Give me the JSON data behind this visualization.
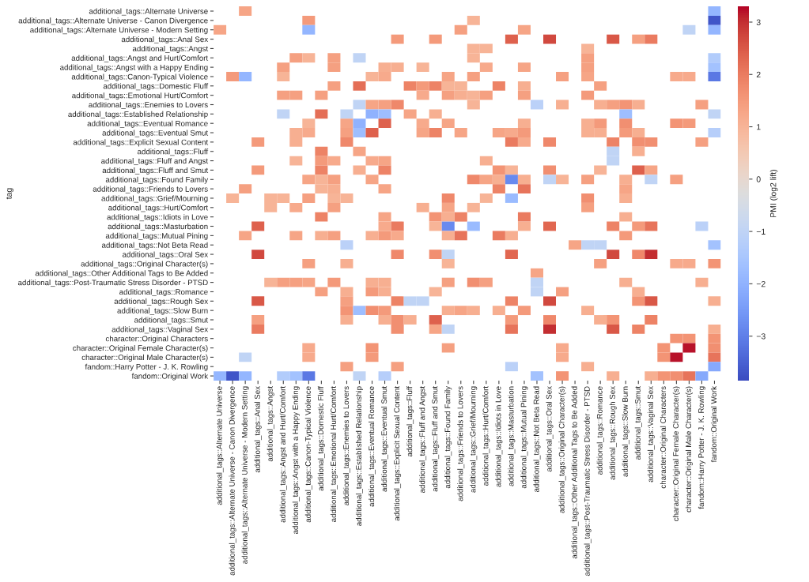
{
  "chart_data": {
    "type": "heatmap",
    "ylabel": "tag",
    "clabel": "PMI (log2 lift)",
    "categories": [
      "additional_tags::Alternate Universe",
      "additional_tags::Alternate Universe - Canon Divergence",
      "additional_tags::Alternate Universe - Modern Setting",
      "additional_tags::Anal Sex",
      "additional_tags::Angst",
      "additional_tags::Angst and Hurt/Comfort",
      "additional_tags::Angst with a Happy Ending",
      "additional_tags::Canon-Typical Violence",
      "additional_tags::Domestic Fluff",
      "additional_tags::Emotional Hurt/Comfort",
      "additional_tags::Enemies to Lovers",
      "additional_tags::Established Relationship",
      "additional_tags::Eventual Romance",
      "additional_tags::Eventual Smut",
      "additional_tags::Explicit Sexual Content",
      "additional_tags::Fluff",
      "additional_tags::Fluff and Angst",
      "additional_tags::Fluff and Smut",
      "additional_tags::Found Family",
      "additional_tags::Friends to Lovers",
      "additional_tags::Grief/Mourning",
      "additional_tags::Hurt/Comfort",
      "additional_tags::Idiots in Love",
      "additional_tags::Masturbation",
      "additional_tags::Mutual Pining",
      "additional_tags::Not Beta Read",
      "additional_tags::Oral Sex",
      "additional_tags::Original Character(s)",
      "additional_tags::Other Additional Tags to Be Added",
      "additional_tags::Post-Traumatic Stress Disorder - PTSD",
      "additional_tags::Romance",
      "additional_tags::Rough Sex",
      "additional_tags::Slow Burn",
      "additional_tags::Smut",
      "additional_tags::Vaginal Sex",
      "character::Original Characters",
      "character::Original Female Character(s)",
      "character::Original Male Character(s)",
      "fandom::Harry Potter - J. K. Rowling",
      "fandom::Original Work"
    ],
    "y_categories": [
      "additional_tags::Alternate Universe",
      "additional_tags::Alternate Universe - Canon Divergence",
      "additional_tags::Alternate Universe - Modern Setting",
      "additional_tags::Anal Sex",
      "additional_tags::Angst",
      "additional_tags::Angst and Hurt/Comfort",
      "additional_tags::Angst with a Happy Ending",
      "additional_tags::Canon-Typical Violence",
      "additional_tags::Domestic Fluff",
      "additional_tags::Emotional Hurt/Comfort",
      "additional_tags::Enemies to Lovers",
      "additional_tags::Established Relationship",
      "additional_tags::Eventual Romance",
      "additional_tags::Eventual Smut",
      "additional_tags::Explicit Sexual Content",
      "additional_tags::Fluff",
      "additional_tags::Fluff and Angst",
      "additional_tags::Fluff and Smut",
      "additional_tags::Found Family",
      "additional_tags::Friends to Lovers",
      "additional_tags::Grief/Mourning",
      "additional_tags::Hurt/Comfort",
      "additional_tags::Idiots in Love",
      "additional_tags::Masturbation",
      "additional_tags::Mutual Pining",
      "additional_tags::Not Beta Read",
      "additional_tags::Oral Sex",
      "additional_tags::Original Character(s)",
      "additional_tags::Other Additional Tags to Be Added",
      "additional_tags::Post-Traumatic Stress Disorder - PTSD",
      "additional_tags::Romance",
      "additional_tags::Rough Sex",
      "additional_tags::Slow Burn",
      "additional_tags::Smut",
      "additional_tags::Vaginal Sex",
      "character::Original Characters",
      "character::Original Female Character(s)",
      "character::Original Male Character(s)",
      "fandom::Harry Potter - J. K. Rowling",
      "fandom::Original Work"
    ],
    "cells": [
      [
        null,
        null,
        1.3,
        null,
        null,
        null,
        null,
        null,
        null,
        null,
        null,
        null,
        null,
        null,
        null,
        null,
        null,
        null,
        null,
        null,
        null,
        null,
        null,
        null,
        null,
        null,
        null,
        null,
        null,
        null,
        null,
        null,
        null,
        null,
        null,
        null,
        null,
        null,
        null,
        -1.9
      ],
      [
        null,
        null,
        null,
        null,
        null,
        null,
        null,
        1.5,
        null,
        null,
        null,
        null,
        null,
        null,
        null,
        null,
        null,
        null,
        null,
        null,
        1.0,
        null,
        null,
        null,
        null,
        null,
        null,
        null,
        null,
        null,
        null,
        null,
        null,
        null,
        null,
        null,
        null,
        null,
        null,
        -3.7
      ],
      [
        1.3,
        null,
        null,
        null,
        null,
        null,
        null,
        -1.9,
        null,
        null,
        null,
        null,
        null,
        null,
        null,
        null,
        null,
        null,
        null,
        1.4,
        null,
        null,
        null,
        null,
        1.3,
        null,
        null,
        null,
        null,
        null,
        null,
        null,
        null,
        null,
        null,
        null,
        null,
        -1.0,
        null,
        -1.9
      ],
      [
        null,
        null,
        null,
        null,
        null,
        null,
        null,
        null,
        null,
        null,
        null,
        null,
        null,
        null,
        1.5,
        null,
        null,
        1.5,
        null,
        null,
        null,
        null,
        null,
        2.4,
        null,
        null,
        2.7,
        null,
        null,
        null,
        null,
        2.5,
        null,
        1.4,
        2.0,
        null,
        null,
        null,
        null,
        null
      ],
      [
        null,
        null,
        null,
        null,
        null,
        null,
        null,
        null,
        null,
        null,
        null,
        null,
        null,
        null,
        null,
        null,
        null,
        null,
        null,
        null,
        1.0,
        1.0,
        null,
        null,
        null,
        null,
        null,
        null,
        null,
        1.0,
        null,
        null,
        null,
        null,
        null,
        null,
        null,
        null,
        null,
        null
      ],
      [
        null,
        null,
        null,
        null,
        null,
        null,
        1.4,
        1.0,
        null,
        1.4,
        null,
        -1.0,
        null,
        null,
        null,
        null,
        null,
        null,
        null,
        null,
        1.0,
        null,
        null,
        null,
        null,
        null,
        null,
        null,
        null,
        1.4,
        null,
        null,
        null,
        null,
        null,
        null,
        null,
        null,
        null,
        -1.3
      ],
      [
        null,
        null,
        null,
        null,
        null,
        1.4,
        null,
        null,
        null,
        1.4,
        null,
        null,
        null,
        1.1,
        1.1,
        null,
        1.0,
        null,
        null,
        null,
        null,
        1.2,
        null,
        null,
        1.3,
        null,
        null,
        null,
        null,
        1.4,
        null,
        null,
        null,
        null,
        null,
        null,
        null,
        null,
        null,
        -1.6
      ],
      [
        null,
        1.5,
        -1.9,
        null,
        null,
        1.0,
        null,
        null,
        null,
        null,
        null,
        null,
        1.0,
        1.2,
        null,
        null,
        null,
        null,
        1.3,
        null,
        1.4,
        null,
        null,
        null,
        null,
        null,
        null,
        1.4,
        null,
        1.3,
        null,
        null,
        null,
        null,
        null,
        null,
        1.2,
        1.2,
        null,
        -3.1
      ],
      [
        null,
        null,
        null,
        null,
        null,
        null,
        null,
        null,
        null,
        1.4,
        null,
        2.2,
        null,
        null,
        null,
        1.9,
        1.5,
        1.9,
        1.0,
        1.0,
        null,
        null,
        1.9,
        null,
        1.1,
        null,
        null,
        null,
        null,
        null,
        1.4,
        null,
        null,
        null,
        null,
        null,
        null,
        null,
        null,
        null
      ],
      [
        null,
        null,
        null,
        null,
        null,
        1.4,
        1.4,
        null,
        1.4,
        null,
        null,
        null,
        null,
        null,
        null,
        null,
        1.2,
        null,
        1.4,
        1.1,
        1.0,
        1.4,
        null,
        null,
        1.4,
        null,
        null,
        null,
        null,
        1.5,
        null,
        null,
        null,
        null,
        null,
        null,
        null,
        null,
        null,
        null
      ],
      [
        null,
        null,
        null,
        null,
        null,
        null,
        null,
        null,
        null,
        null,
        null,
        -1.0,
        1.3,
        1.4,
        1.8,
        null,
        null,
        null,
        null,
        null,
        1.0,
        null,
        null,
        null,
        null,
        -1.1,
        null,
        1.1,
        null,
        null,
        1.1,
        1.4,
        1.6,
        1.1,
        null,
        null,
        null,
        null,
        1.4,
        null
      ],
      [
        null,
        null,
        null,
        null,
        null,
        -1.0,
        null,
        null,
        2.2,
        null,
        -1.0,
        null,
        -2.0,
        -1.7,
        null,
        1.3,
        null,
        1.1,
        null,
        null,
        null,
        null,
        null,
        null,
        null,
        null,
        null,
        null,
        null,
        null,
        null,
        null,
        -1.7,
        null,
        null,
        null,
        null,
        null,
        null,
        -1.0
      ],
      [
        null,
        null,
        null,
        null,
        null,
        null,
        null,
        1.0,
        null,
        null,
        1.3,
        -2.0,
        null,
        2.4,
        null,
        null,
        1.2,
        null,
        1.3,
        null,
        null,
        null,
        null,
        null,
        1.1,
        null,
        null,
        null,
        null,
        1.1,
        1.5,
        null,
        1.7,
        null,
        null,
        null,
        1.6,
        1.5,
        null,
        null
      ],
      [
        null,
        null,
        null,
        null,
        null,
        null,
        1.1,
        1.2,
        null,
        null,
        1.4,
        -1.7,
        2.4,
        null,
        null,
        null,
        1.3,
        1.9,
        null,
        1.3,
        null,
        null,
        1.3,
        1.2,
        1.5,
        null,
        null,
        null,
        null,
        1.1,
        1.1,
        null,
        1.5,
        1.1,
        null,
        null,
        null,
        null,
        null,
        -1.2
      ],
      [
        null,
        null,
        null,
        1.5,
        null,
        null,
        1.1,
        null,
        null,
        null,
        1.8,
        null,
        null,
        null,
        null,
        null,
        null,
        null,
        null,
        null,
        null,
        null,
        null,
        2.0,
        1.2,
        null,
        1.8,
        null,
        null,
        null,
        null,
        1.9,
        null,
        1.7,
        1.7,
        null,
        null,
        null,
        1.4,
        null
      ],
      [
        null,
        null,
        null,
        null,
        null,
        null,
        null,
        null,
        1.9,
        null,
        null,
        1.3,
        null,
        null,
        null,
        null,
        null,
        null,
        null,
        null,
        null,
        null,
        null,
        null,
        null,
        null,
        null,
        null,
        null,
        null,
        null,
        -1.0,
        null,
        1.1,
        null,
        null,
        null,
        null,
        null,
        null
      ],
      [
        null,
        null,
        null,
        null,
        null,
        null,
        1.0,
        null,
        1.5,
        1.2,
        null,
        null,
        1.2,
        1.3,
        null,
        null,
        null,
        null,
        null,
        null,
        null,
        1.1,
        null,
        null,
        null,
        null,
        null,
        null,
        null,
        null,
        null,
        -1.0,
        null,
        null,
        null,
        null,
        null,
        null,
        null,
        null
      ],
      [
        null,
        null,
        null,
        1.5,
        null,
        null,
        null,
        null,
        1.9,
        null,
        null,
        1.1,
        null,
        1.9,
        null,
        null,
        null,
        null,
        null,
        null,
        null,
        null,
        1.6,
        1.0,
        null,
        null,
        1.7,
        null,
        null,
        null,
        1.0,
        null,
        null,
        2.4,
        1.3,
        null,
        null,
        null,
        null,
        null
      ],
      [
        null,
        null,
        null,
        null,
        null,
        null,
        null,
        1.3,
        1.0,
        1.4,
        null,
        null,
        1.3,
        null,
        null,
        null,
        null,
        null,
        null,
        null,
        1.8,
        1.3,
        1.1,
        -2.8,
        1.1,
        null,
        -1.0,
        1.0,
        null,
        1.4,
        null,
        null,
        1.1,
        null,
        -1.0,
        null,
        1.4,
        null,
        null,
        null
      ],
      [
        null,
        null,
        1.4,
        null,
        null,
        null,
        null,
        null,
        1.0,
        1.1,
        null,
        null,
        null,
        1.3,
        null,
        null,
        null,
        null,
        null,
        null,
        null,
        null,
        1.9,
        null,
        2.1,
        null,
        null,
        null,
        null,
        null,
        null,
        null,
        1.3,
        null,
        null,
        null,
        null,
        null,
        null,
        null
      ],
      [
        null,
        1.0,
        null,
        null,
        1.0,
        1.0,
        null,
        1.4,
        null,
        1.0,
        1.0,
        null,
        null,
        null,
        null,
        null,
        null,
        null,
        1.8,
        null,
        null,
        1.0,
        null,
        -1.8,
        null,
        null,
        null,
        null,
        null,
        1.7,
        null,
        null,
        1.1,
        null,
        null,
        null,
        null,
        null,
        null,
        null
      ],
      [
        null,
        null,
        null,
        null,
        1.0,
        null,
        1.2,
        null,
        null,
        1.4,
        null,
        null,
        null,
        null,
        null,
        null,
        1.1,
        null,
        1.3,
        null,
        1.0,
        null,
        null,
        null,
        null,
        null,
        null,
        null,
        null,
        1.4,
        null,
        null,
        null,
        null,
        null,
        null,
        null,
        null,
        null,
        null
      ],
      [
        null,
        null,
        null,
        null,
        null,
        null,
        null,
        null,
        1.9,
        null,
        null,
        null,
        null,
        1.3,
        null,
        null,
        null,
        1.6,
        1.1,
        1.9,
        null,
        null,
        null,
        null,
        2.0,
        null,
        null,
        null,
        null,
        null,
        null,
        null,
        1.1,
        null,
        null,
        null,
        null,
        null,
        null,
        null
      ],
      [
        null,
        null,
        null,
        2.4,
        null,
        null,
        null,
        null,
        null,
        null,
        null,
        null,
        null,
        1.2,
        2.0,
        null,
        null,
        1.0,
        -2.8,
        null,
        -1.8,
        null,
        null,
        null,
        1.1,
        null,
        2.3,
        null,
        null,
        null,
        null,
        1.9,
        null,
        1.5,
        2.1,
        null,
        null,
        null,
        -1.1,
        null
      ],
      [
        null,
        null,
        1.3,
        null,
        null,
        null,
        1.3,
        null,
        1.1,
        1.4,
        null,
        null,
        1.1,
        1.5,
        1.2,
        null,
        null,
        null,
        1.1,
        2.1,
        null,
        null,
        2.0,
        1.1,
        null,
        null,
        null,
        null,
        null,
        null,
        null,
        null,
        1.5,
        null,
        null,
        null,
        null,
        null,
        null,
        null
      ],
      [
        null,
        null,
        null,
        null,
        null,
        null,
        null,
        null,
        null,
        null,
        -1.1,
        null,
        null,
        null,
        null,
        null,
        null,
        null,
        null,
        null,
        null,
        null,
        null,
        null,
        null,
        null,
        null,
        null,
        1.3,
        -1.0,
        -1.0,
        null,
        null,
        null,
        null,
        null,
        null,
        null,
        null,
        -1.6
      ],
      [
        null,
        null,
        null,
        2.7,
        null,
        null,
        null,
        null,
        null,
        null,
        null,
        null,
        null,
        null,
        1.8,
        null,
        null,
        1.7,
        -1.0,
        null,
        null,
        null,
        null,
        2.3,
        null,
        null,
        null,
        null,
        null,
        null,
        null,
        2.7,
        null,
        1.8,
        3.0,
        null,
        null,
        null,
        null,
        null
      ],
      [
        null,
        null,
        null,
        null,
        null,
        null,
        null,
        1.4,
        null,
        null,
        1.1,
        null,
        null,
        null,
        null,
        null,
        null,
        null,
        1.0,
        null,
        null,
        null,
        null,
        null,
        null,
        null,
        null,
        null,
        null,
        null,
        1.4,
        null,
        null,
        null,
        null,
        null,
        1.2,
        1.2,
        null,
        1.6
      ],
      [
        null,
        null,
        null,
        null,
        null,
        null,
        null,
        null,
        null,
        null,
        null,
        null,
        null,
        null,
        null,
        null,
        null,
        null,
        null,
        null,
        null,
        null,
        null,
        null,
        null,
        1.3,
        null,
        null,
        null,
        null,
        null,
        null,
        null,
        null,
        null,
        null,
        null,
        null,
        null,
        null
      ],
      [
        null,
        null,
        null,
        null,
        1.0,
        1.4,
        1.4,
        1.3,
        null,
        1.5,
        null,
        null,
        1.1,
        1.1,
        null,
        null,
        null,
        null,
        1.4,
        null,
        1.7,
        1.4,
        null,
        null,
        null,
        -1.0,
        null,
        null,
        null,
        null,
        null,
        null,
        1.1,
        null,
        null,
        null,
        null,
        null,
        1.1,
        null
      ],
      [
        null,
        null,
        null,
        null,
        null,
        null,
        null,
        null,
        1.4,
        null,
        1.1,
        null,
        1.5,
        1.1,
        null,
        null,
        null,
        1.0,
        null,
        null,
        null,
        null,
        null,
        null,
        null,
        -1.0,
        null,
        1.4,
        null,
        null,
        null,
        null,
        null,
        1.1,
        null,
        null,
        null,
        null,
        null,
        null
      ],
      [
        null,
        null,
        null,
        2.5,
        null,
        null,
        null,
        null,
        null,
        null,
        1.4,
        null,
        null,
        null,
        1.9,
        -1.0,
        -1.0,
        null,
        null,
        null,
        null,
        null,
        null,
        1.9,
        null,
        null,
        2.7,
        null,
        null,
        null,
        null,
        null,
        null,
        1.6,
        2.5,
        null,
        null,
        null,
        null,
        1.1
      ],
      [
        null,
        null,
        null,
        null,
        null,
        null,
        null,
        null,
        null,
        null,
        1.6,
        -1.7,
        1.7,
        1.5,
        null,
        null,
        null,
        null,
        1.1,
        1.3,
        1.1,
        null,
        1.1,
        null,
        1.5,
        null,
        null,
        null,
        null,
        1.1,
        null,
        null,
        null,
        null,
        null,
        null,
        null,
        null,
        null,
        null
      ],
      [
        null,
        null,
        null,
        1.4,
        null,
        null,
        null,
        null,
        null,
        null,
        1.1,
        null,
        null,
        1.1,
        1.7,
        1.1,
        null,
        2.4,
        null,
        null,
        null,
        null,
        null,
        1.5,
        null,
        null,
        1.8,
        null,
        null,
        null,
        1.1,
        1.6,
        null,
        null,
        1.9,
        null,
        null,
        null,
        null,
        null
      ],
      [
        null,
        null,
        null,
        2.0,
        null,
        null,
        null,
        null,
        null,
        null,
        null,
        null,
        null,
        null,
        1.7,
        null,
        null,
        1.3,
        -1.0,
        null,
        null,
        null,
        null,
        2.1,
        null,
        null,
        3.0,
        null,
        null,
        null,
        null,
        2.5,
        null,
        1.9,
        null,
        null,
        null,
        null,
        null,
        1.1
      ],
      [
        null,
        null,
        null,
        null,
        null,
        null,
        null,
        null,
        null,
        null,
        null,
        null,
        null,
        null,
        null,
        null,
        null,
        null,
        null,
        null,
        null,
        null,
        null,
        null,
        null,
        null,
        null,
        null,
        null,
        null,
        null,
        null,
        null,
        null,
        null,
        null,
        1.6,
        1.6,
        null,
        1.6
      ],
      [
        null,
        null,
        null,
        null,
        null,
        null,
        null,
        1.2,
        null,
        null,
        null,
        null,
        1.6,
        null,
        null,
        null,
        null,
        null,
        1.4,
        null,
        null,
        null,
        null,
        null,
        null,
        null,
        null,
        1.2,
        null,
        null,
        null,
        null,
        null,
        null,
        null,
        1.6,
        null,
        3.2,
        null,
        1.7
      ],
      [
        null,
        null,
        -1.0,
        null,
        null,
        null,
        null,
        1.2,
        null,
        null,
        null,
        null,
        1.5,
        null,
        null,
        null,
        null,
        null,
        null,
        null,
        null,
        null,
        null,
        null,
        null,
        null,
        null,
        1.2,
        null,
        null,
        null,
        null,
        null,
        null,
        null,
        1.6,
        3.2,
        null,
        null,
        2.1
      ],
      [
        null,
        null,
        null,
        null,
        null,
        null,
        null,
        null,
        null,
        null,
        1.4,
        null,
        null,
        null,
        1.4,
        null,
        null,
        null,
        null,
        null,
        null,
        null,
        null,
        -1.1,
        null,
        null,
        null,
        null,
        null,
        1.1,
        null,
        null,
        null,
        null,
        null,
        null,
        null,
        null,
        null,
        -2.2
      ],
      [
        -1.9,
        -3.7,
        -1.9,
        null,
        null,
        -1.3,
        -1.6,
        -3.1,
        null,
        null,
        null,
        -1.0,
        null,
        -1.2,
        null,
        null,
        null,
        null,
        null,
        null,
        null,
        null,
        null,
        null,
        null,
        -1.6,
        null,
        1.6,
        null,
        null,
        null,
        1.1,
        null,
        null,
        1.1,
        1.6,
        1.7,
        2.1,
        -2.2,
        null
      ]
    ],
    "clim": [
      -3.85,
      3.3
    ],
    "cticks": [
      -3,
      -2,
      -1,
      0,
      1,
      2,
      3
    ]
  }
}
